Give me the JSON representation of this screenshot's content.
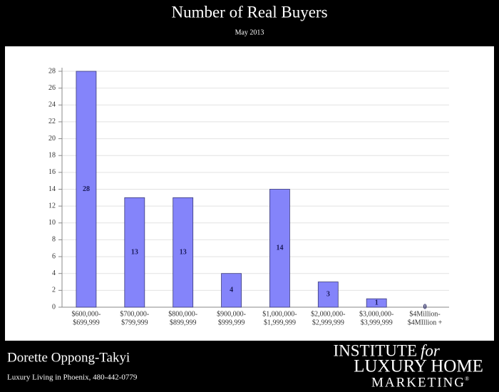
{
  "chart_data": {
    "type": "bar",
    "title": "Number of Real Buyers",
    "subtitle": "May 2013",
    "categories": [
      [
        "$600,000-",
        "$699,999"
      ],
      [
        "$700,000-",
        "$799,999"
      ],
      [
        "$800,000-",
        "$899,999"
      ],
      [
        "$900,000-",
        "$999,999"
      ],
      [
        "$1,000,000-",
        "$1,999,999"
      ],
      [
        "$2,000,000-",
        "$2,999,999"
      ],
      [
        "$3,000,000-",
        "$3,999,999"
      ],
      [
        "$4Million-",
        "$4MIllion +"
      ]
    ],
    "values": [
      28,
      13,
      13,
      4,
      14,
      3,
      1,
      0
    ],
    "color": "#8484fa",
    "ylim": [
      0,
      28
    ],
    "yticks": [
      0,
      2,
      4,
      6,
      8,
      10,
      12,
      14,
      16,
      18,
      20,
      22,
      24,
      26,
      28
    ],
    "grid": true
  },
  "footer": {
    "name": "Dorette Oppong-Takyi",
    "tagline": "Luxury Living in Phoenix, 480-442-0779",
    "logo": {
      "line1": "INSTITUTE",
      "line1_italic": "for",
      "line2": "LUXURY HOME",
      "line3": "MARKETING",
      "mark": "®"
    }
  }
}
